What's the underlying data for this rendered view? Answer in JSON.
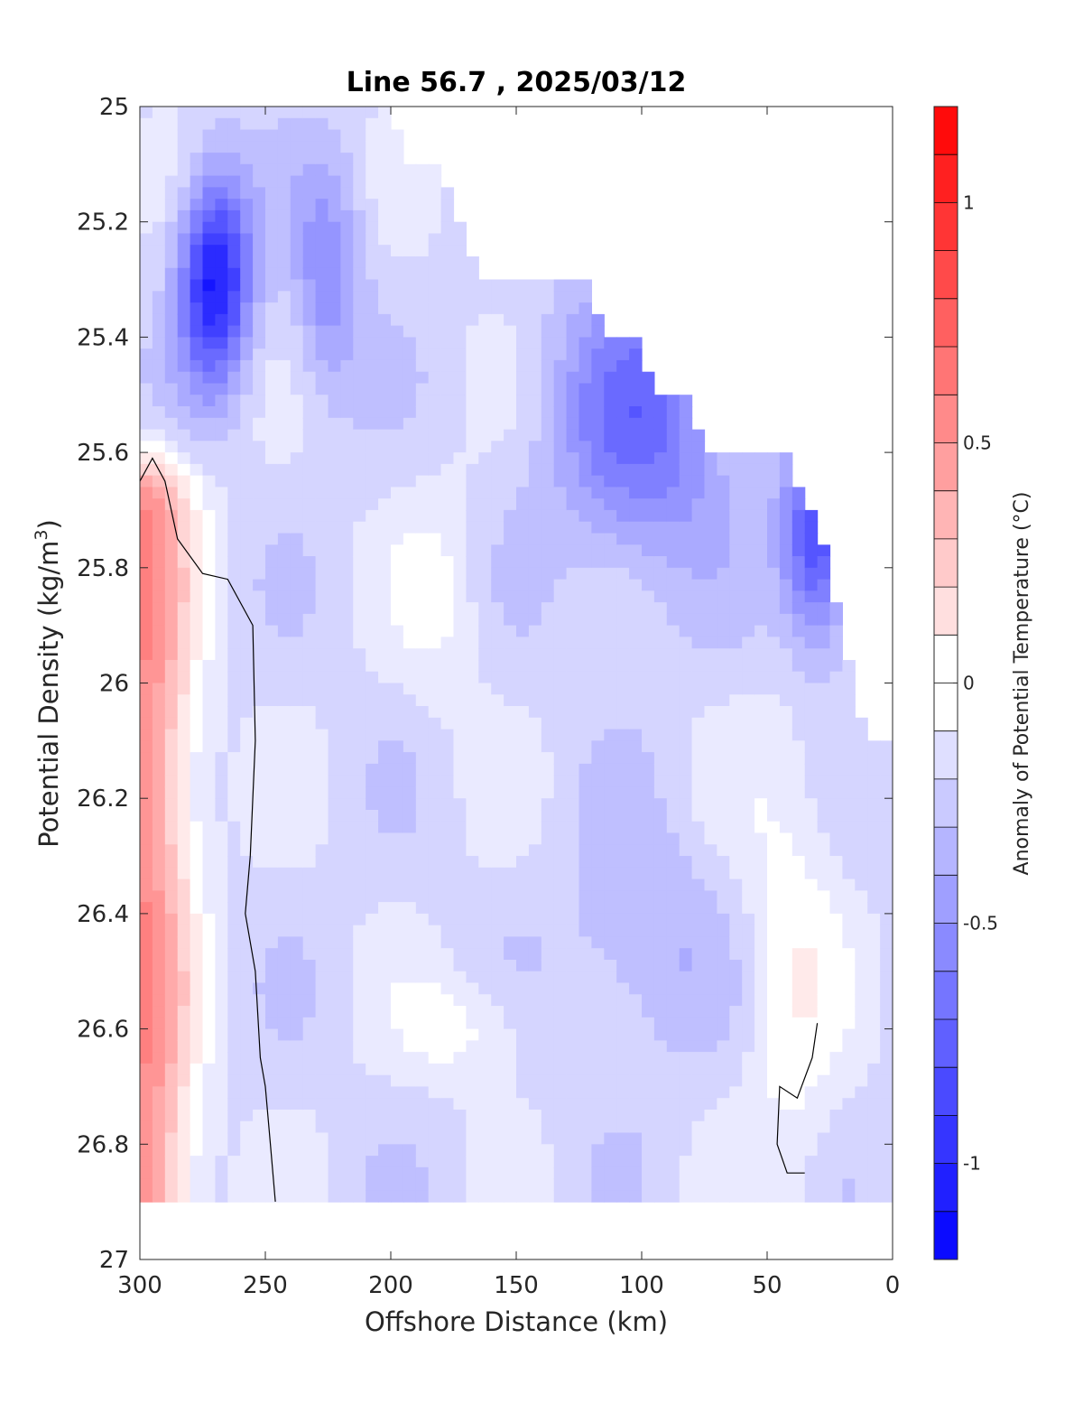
{
  "chart_data": {
    "type": "heatmap",
    "subtype": "filled-contour",
    "title": "Line 56.7 , 2025/03/12",
    "xlabel": "Offshore Distance (km)",
    "ylabel_main": "Potential Density (kg/m",
    "ylabel_sup": "3",
    "ylabel_close": ")",
    "xlim": [
      300,
      0
    ],
    "ylim": [
      27,
      25
    ],
    "x_reversed": true,
    "y_reversed": true,
    "xticks": [
      300,
      250,
      200,
      150,
      100,
      50,
      0
    ],
    "yticks": [
      25,
      25.2,
      25.4,
      25.6,
      25.8,
      26,
      26.2,
      26.4,
      26.6,
      26.8,
      27
    ],
    "xtick_labels": [
      "300",
      "250",
      "200",
      "150",
      "100",
      "50",
      "0"
    ],
    "ytick_labels": [
      "25",
      "25.2",
      "25.4",
      "25.6",
      "25.8",
      "26",
      "26.2",
      "26.4",
      "26.6",
      "26.8",
      "27"
    ],
    "colorbar": {
      "label": "Anomaly of Potential Temperature (°C)",
      "range": [
        -1.2,
        1.2
      ],
      "levels": [
        -1.2,
        -1.1,
        -1.0,
        -0.9,
        -0.8,
        -0.7,
        -0.6,
        -0.5,
        -0.4,
        -0.3,
        -0.2,
        -0.1,
        0,
        0.1,
        0.2,
        0.3,
        0.4,
        0.5,
        0.6,
        0.7,
        0.8,
        0.9,
        1.0,
        1.1,
        1.2
      ],
      "ticks": [
        1,
        0.5,
        0,
        -0.5,
        -1
      ],
      "tick_labels": [
        "1",
        "0.5",
        "0",
        "-0.5",
        "-1"
      ],
      "colormap": "blue-white-red"
    },
    "data_extent_top_boundary": [
      [
        300,
        25.0
      ],
      [
        200,
        25.0
      ],
      [
        195,
        25.1
      ],
      [
        180,
        25.1
      ],
      [
        173,
        25.2
      ],
      [
        165,
        25.3
      ],
      [
        120,
        25.3
      ],
      [
        115,
        25.4
      ],
      [
        100,
        25.4
      ],
      [
        95,
        25.5
      ],
      [
        80,
        25.5
      ],
      [
        75,
        25.6
      ],
      [
        40,
        25.6
      ],
      [
        35,
        25.7
      ],
      [
        30,
        25.7
      ],
      [
        15,
        26.0
      ],
      [
        10,
        26.1
      ],
      [
        0,
        26.1
      ]
    ],
    "data_bottom": 26.9,
    "zero_contour_lines": [
      [
        [
          300,
          25.65
        ],
        [
          295,
          25.61
        ],
        [
          290,
          25.65
        ],
        [
          285,
          25.75
        ],
        [
          275,
          25.81
        ],
        [
          265,
          25.82
        ],
        [
          260,
          25.86
        ],
        [
          255,
          25.9
        ],
        [
          254,
          26.1
        ],
        [
          256,
          26.3
        ],
        [
          258,
          26.4
        ],
        [
          254,
          26.5
        ],
        [
          252,
          26.65
        ],
        [
          250,
          26.7
        ],
        [
          248,
          26.8
        ],
        [
          246,
          26.9
        ]
      ],
      [
        [
          30,
          26.59
        ],
        [
          32,
          26.65
        ],
        [
          38,
          26.72
        ],
        [
          45,
          26.7
        ],
        [
          46,
          26.8
        ],
        [
          42,
          26.85
        ],
        [
          35,
          26.85
        ]
      ]
    ],
    "features": [
      {
        "name": "cold core",
        "x": 270,
        "y": 25.3,
        "value": -1.0
      },
      {
        "name": "warm anomaly",
        "x": 295,
        "y": 26.0,
        "value": 0.55
      },
      {
        "name": "cold region",
        "x": 100,
        "y": 25.5,
        "value": -0.7
      },
      {
        "name": "cold edge",
        "x": 35,
        "y": 25.65,
        "value": -0.9
      }
    ],
    "colors": {
      "cold_max": "#0000ff",
      "warm_max": "#ff0000",
      "neutral": "#ffffff",
      "axis": "#262626"
    }
  }
}
